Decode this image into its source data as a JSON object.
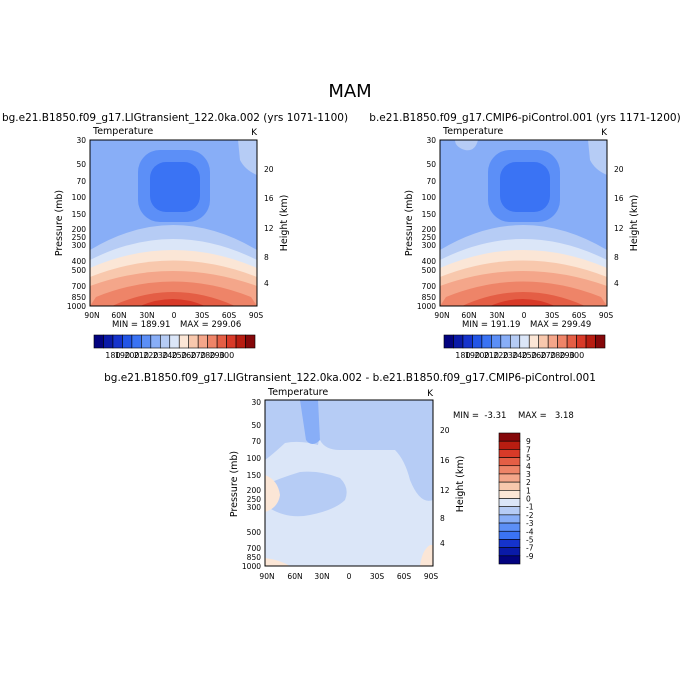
{
  "title": "MAM",
  "colorbar_top": {
    "labels": [
      "180",
      "190",
      "200",
      "210",
      "220",
      "230",
      "240",
      "250",
      "260",
      "270",
      "280",
      "290",
      "300"
    ],
    "colors": [
      "#03037f",
      "#0a1aa8",
      "#1533cc",
      "#2255e6",
      "#3a73f4",
      "#5c8ff7",
      "#88aef7",
      "#b6ccf5",
      "#dbe6f8",
      "#fbe6d6",
      "#f8c8ad",
      "#f4a68a",
      "#ee8468",
      "#e45e45",
      "#d83a28",
      "#b81d11",
      "#85080a"
    ]
  },
  "colorbar_diff": {
    "labels": [
      "9",
      "7",
      "5",
      "4",
      "3",
      "2",
      "1",
      "0",
      "-1",
      "-2",
      "-3",
      "-4",
      "-5",
      "-7",
      "-9"
    ],
    "colors": [
      "#85080a",
      "#b81d11",
      "#d83a28",
      "#e45e45",
      "#ee8468",
      "#f4a68a",
      "#f8c8ad",
      "#fbe6d6",
      "#dbe6f8",
      "#b6ccf5",
      "#88aef7",
      "#5c8ff7",
      "#3a73f4",
      "#1533cc",
      "#0a1aa8",
      "#03037f"
    ]
  },
  "chart_data": [
    {
      "type": "heatmap",
      "title": "bg.e21.B1850.f09_g17.LIGtransient_122.0ka.002 (yrs 1071-1100)",
      "subtitle": "Temperature",
      "units": "K",
      "ylabel": "Pressure (mb)",
      "y2label": "Height (km)",
      "x_ticks": [
        "90N",
        "60N",
        "30N",
        "0",
        "30S",
        "60S",
        "90S"
      ],
      "y_ticks": [
        "30",
        "50",
        "70",
        "100",
        "150",
        "200",
        "250",
        "300",
        "400",
        "500",
        "700",
        "850",
        "1000"
      ],
      "y2_ticks": [
        "20",
        "16",
        "12",
        "8",
        "4"
      ],
      "min_label": "MIN = 189.91",
      "max_label": "MAX = 299.06",
      "min": 189.91,
      "max": 299.06
    },
    {
      "type": "heatmap",
      "title": "b.e21.B1850.f09_g17.CMIP6-piControl.001 (yrs 1171-1200)",
      "subtitle": "Temperature",
      "units": "K",
      "ylabel": "Pressure (mb)",
      "y2label": "Height (km)",
      "x_ticks": [
        "90N",
        "60N",
        "30N",
        "0",
        "30S",
        "60S",
        "90S"
      ],
      "y_ticks": [
        "30",
        "50",
        "70",
        "100",
        "150",
        "200",
        "250",
        "300",
        "400",
        "500",
        "700",
        "850",
        "1000"
      ],
      "y2_ticks": [
        "20",
        "16",
        "12",
        "8",
        "4"
      ],
      "min_label": "MIN = 191.19",
      "max_label": "MAX = 299.49",
      "min": 191.19,
      "max": 299.49
    },
    {
      "type": "heatmap",
      "title": "bg.e21.B1850.f09_g17.LIGtransient_122.0ka.002 - b.e21.B1850.f09_g17.CMIP6-piControl.001",
      "subtitle": "Temperature",
      "units": "K",
      "ylabel": "Pressure (mb)",
      "y2label": "Height (km)",
      "x_ticks": [
        "90N",
        "60N",
        "30N",
        "0",
        "30S",
        "60S",
        "90S"
      ],
      "y_ticks": [
        "30",
        "50",
        "70",
        "100",
        "150",
        "200",
        "250",
        "300",
        "500",
        "700",
        "850",
        "1000"
      ],
      "y2_ticks": [
        "20",
        "16",
        "12",
        "8",
        "4"
      ],
      "min_label": "MIN =  -3.31",
      "max_label": "MAX =   3.18",
      "min": -3.31,
      "max": 3.18
    }
  ]
}
